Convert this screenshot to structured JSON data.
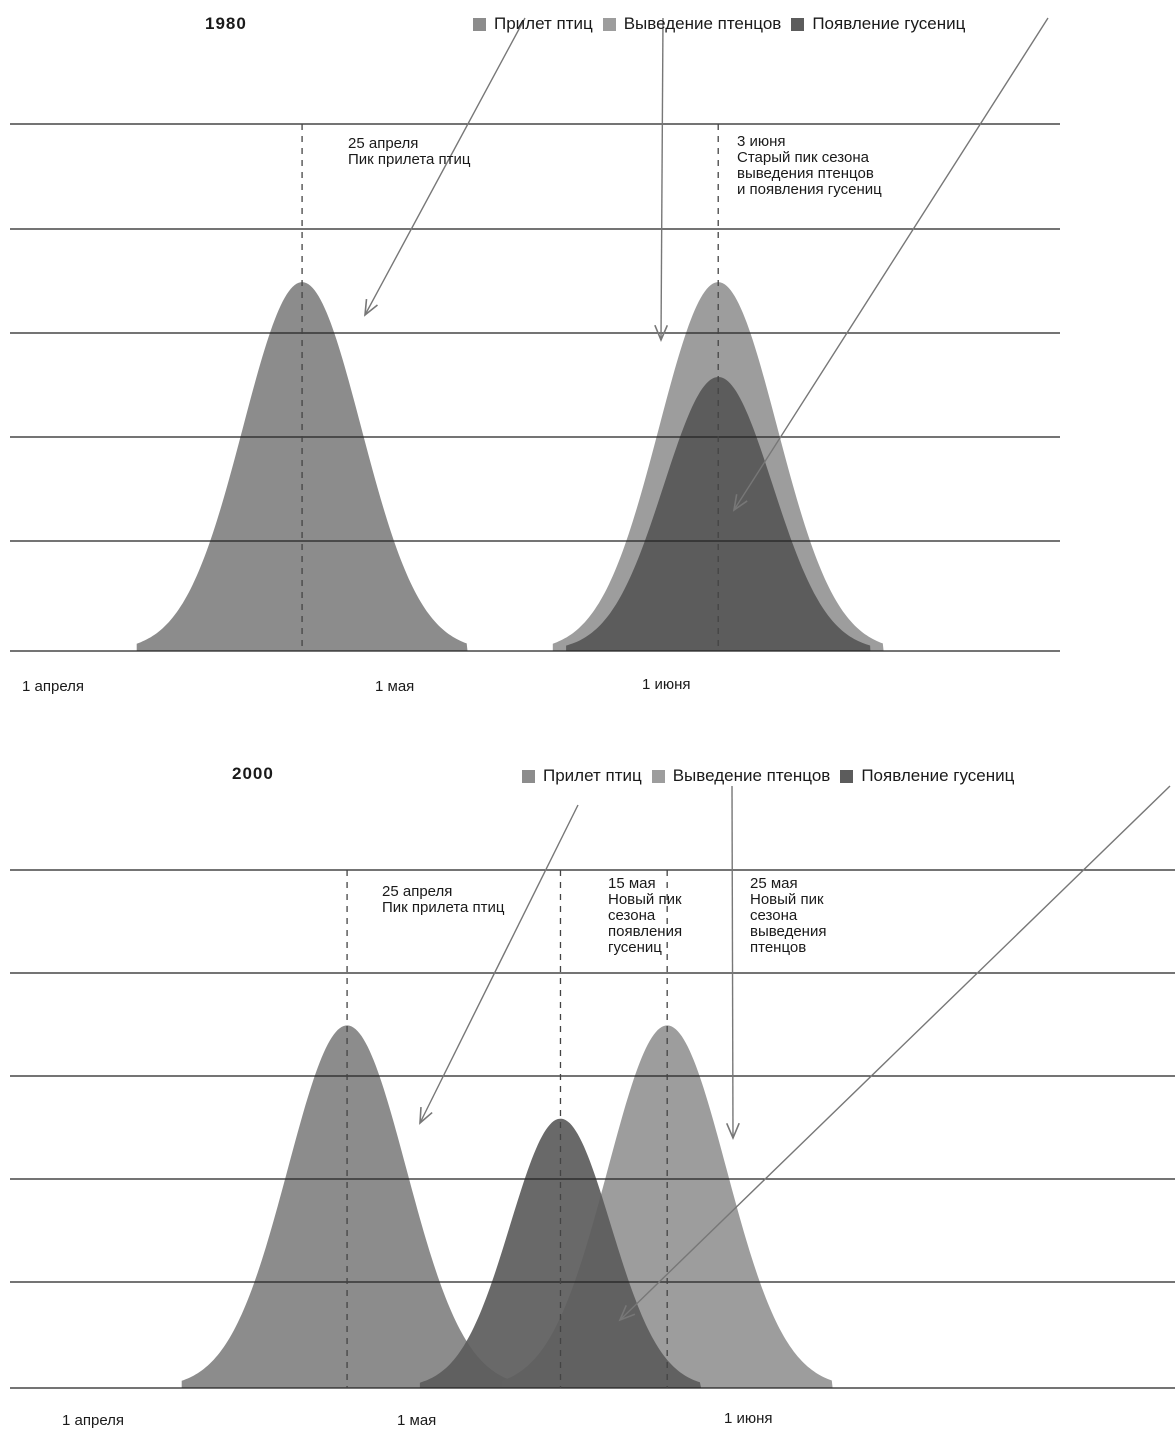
{
  "chart_data": [
    {
      "type": "area",
      "title": "1980",
      "x_axis": {
        "tick_labels": [
          "1 апреля",
          "1 мая",
          "1 июня"
        ],
        "range_days_from_apr1": [
          0,
          90
        ]
      },
      "ylim": [
        0,
        5
      ],
      "grid": true,
      "legend": "top-right",
      "series": [
        {
          "name": "Прилет птиц",
          "color": "#8c8c8c",
          "peak_date": "25 апреля",
          "peak": 3.5
        },
        {
          "name": "Выведение птенцов",
          "color": "#9d9d9d",
          "peak_date": "3 июня",
          "peak": 3.5
        },
        {
          "name": "Появление гусениц",
          "color": "#5c5c5c",
          "peak_date": "3 июня",
          "peak": 2.6
        }
      ],
      "annotations": [
        {
          "date": "25 апреля",
          "text": "25 апреля\nПик прилета птиц"
        },
        {
          "date": "3 июня",
          "text": "3 июня\nСтарый пик сезона\nвыведения птенцов\nи появления гусениц"
        }
      ]
    },
    {
      "type": "area",
      "title": "2000",
      "x_axis": {
        "tick_labels": [
          "1 апреля",
          "1 мая",
          "1 июня"
        ],
        "range_days_from_apr1": [
          0,
          90
        ]
      },
      "ylim": [
        0,
        5
      ],
      "grid": true,
      "legend": "top-right",
      "series": [
        {
          "name": "Прилет птиц",
          "color": "#8c8c8c",
          "peak_date": "25 апреля",
          "peak": 3.5
        },
        {
          "name": "Выведение птенцов",
          "color": "#9d9d9d",
          "peak_date": "25 мая",
          "peak": 3.5
        },
        {
          "name": "Появление гусениц",
          "color": "#5c5c5c",
          "peak_date": "15 мая",
          "peak": 2.6
        }
      ],
      "annotations": [
        {
          "date": "25 апреля",
          "text": "25 апреля\nПик прилета птиц"
        },
        {
          "date": "15 мая",
          "text": "15 мая\nНовый пик\nсезона\nпоявления\nгусениц"
        },
        {
          "date": "25 мая",
          "text": "25 мая\nНовый пик\nсезона\nвыведения\nптенцов"
        }
      ]
    }
  ]
}
